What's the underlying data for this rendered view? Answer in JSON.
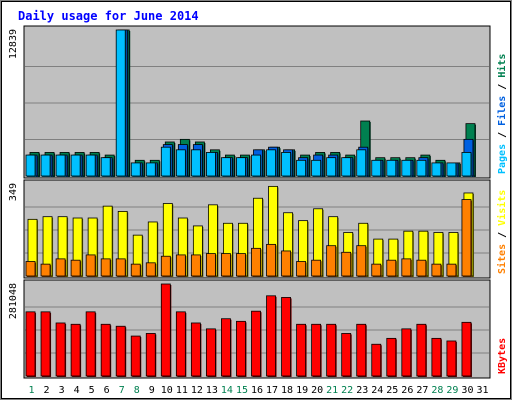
{
  "chart_data": {
    "type": "bar",
    "title": "Daily usage for June 2014",
    "colors": {
      "background": "#ffffff",
      "plot": "#c0c0c0",
      "grid": "#808080",
      "title": "#0000ff",
      "pages": "#00c0ff",
      "files": "#0060e0",
      "hits": "#008050",
      "visits": "#ffff00",
      "sites": "#ff8000",
      "kbytes": "#ff0000",
      "weekday": "#000000",
      "weekend": "#008050"
    },
    "days": [
      {
        "label": "1",
        "weekend": true
      },
      {
        "label": "2",
        "weekend": false
      },
      {
        "label": "3",
        "weekend": false
      },
      {
        "label": "4",
        "weekend": false
      },
      {
        "label": "5",
        "weekend": false
      },
      {
        "label": "6",
        "weekend": false
      },
      {
        "label": "7",
        "weekend": true
      },
      {
        "label": "8",
        "weekend": true
      },
      {
        "label": "9",
        "weekend": false
      },
      {
        "label": "10",
        "weekend": false
      },
      {
        "label": "11",
        "weekend": false
      },
      {
        "label": "12",
        "weekend": false
      },
      {
        "label": "13",
        "weekend": false
      },
      {
        "label": "14",
        "weekend": true
      },
      {
        "label": "15",
        "weekend": true
      },
      {
        "label": "16",
        "weekend": false
      },
      {
        "label": "17",
        "weekend": false
      },
      {
        "label": "18",
        "weekend": false
      },
      {
        "label": "19",
        "weekend": false
      },
      {
        "label": "20",
        "weekend": false
      },
      {
        "label": "21",
        "weekend": true
      },
      {
        "label": "22",
        "weekend": true
      },
      {
        "label": "23",
        "weekend": false
      },
      {
        "label": "24",
        "weekend": false
      },
      {
        "label": "25",
        "weekend": false
      },
      {
        "label": "26",
        "weekend": false
      },
      {
        "label": "27",
        "weekend": false
      },
      {
        "label": "28",
        "weekend": true
      },
      {
        "label": "29",
        "weekend": true
      },
      {
        "label": "30",
        "weekend": false
      },
      {
        "label": "31",
        "weekend": false
      }
    ],
    "panels": [
      {
        "id": "hits",
        "max_label": "12839",
        "ymax": 12839,
        "legend": [
          {
            "text": "Pages",
            "color": "#00c0ff"
          },
          {
            "text": " / ",
            "color": "#000000"
          },
          {
            "text": "Files",
            "color": "#0060e0"
          },
          {
            "text": " / ",
            "color": "#000000"
          },
          {
            "text": "Hits",
            "color": "#008050"
          }
        ],
        "series": [
          {
            "name": "Hits",
            "color": "#008050",
            "values": [
              2072,
              2072,
              2072,
              2072,
              2072,
              1841,
              12839,
              1381,
              1381,
              2992,
              3223,
              2992,
              2302,
              1841,
              1841,
              2302,
              2532,
              2302,
              1841,
              2072,
              2072,
              1841,
              4835,
              1611,
              1611,
              1611,
              1841,
              1381,
              1151,
              4605,
              0
            ]
          },
          {
            "name": "Files",
            "color": "#0060e0",
            "values": [
              1841,
              1841,
              1841,
              1841,
              1841,
              1611,
              12839,
              1151,
              1151,
              2762,
              2762,
              2762,
              2072,
              1611,
              1611,
              2302,
              2532,
              2302,
              1611,
              1841,
              1841,
              1611,
              2532,
              1381,
              1381,
              1381,
              1611,
              1151,
              1151,
              3223,
              0
            ]
          },
          {
            "name": "Pages",
            "color": "#00c0ff",
            "values": [
              1841,
              1841,
              1841,
              1841,
              1841,
              1611,
              12839,
              1151,
              1151,
              2532,
              2302,
              2302,
              2072,
              1611,
              1611,
              1841,
              2302,
              2072,
              1381,
              1381,
              1611,
              1611,
              2302,
              1381,
              1381,
              1381,
              1381,
              1151,
              1151,
              2072,
              0
            ]
          }
        ]
      },
      {
        "id": "visits",
        "max_label": "349",
        "ymax": 349,
        "legend": [
          {
            "text": "Sites",
            "color": "#ff8000"
          },
          {
            "text": " / ",
            "color": "#000000"
          },
          {
            "text": "Visits",
            "color": "#ffff00"
          }
        ],
        "series": [
          {
            "name": "Visits",
            "color": "#ffff00",
            "values": [
              215,
              225,
              225,
              220,
              220,
              265,
              245,
              155,
              205,
              275,
              220,
              190,
              270,
              200,
              200,
              295,
              340,
              240,
              210,
              255,
              225,
              165,
              200,
              140,
              140,
              170,
              170,
              165,
              165,
              315,
              0
            ]
          },
          {
            "name": "Sites",
            "color": "#ff8000",
            "values": [
              55,
              45,
              65,
              60,
              80,
              65,
              65,
              45,
              50,
              75,
              80,
              80,
              85,
              85,
              85,
              105,
              120,
              95,
              55,
              60,
              115,
              90,
              115,
              45,
              60,
              65,
              60,
              45,
              45,
              290,
              0
            ]
          }
        ]
      },
      {
        "id": "kbytes",
        "max_label": "281048",
        "ymax": 281048,
        "legend": [
          {
            "text": "KBytes",
            "color": "#ff0000"
          }
        ],
        "series": [
          {
            "name": "KBytes",
            "color": "#ff0000",
            "values": [
              196000,
              196000,
              162000,
              158000,
              196000,
              158000,
              152000,
              122000,
              130000,
              281048,
              196000,
              162000,
              144000,
              175000,
              167000,
              198000,
              245000,
              240000,
              158000,
              158000,
              158000,
              130000,
              158000,
              97000,
              115000,
              144000,
              158000,
              115000,
              107000,
              164000,
              0
            ]
          }
        ]
      }
    ]
  }
}
